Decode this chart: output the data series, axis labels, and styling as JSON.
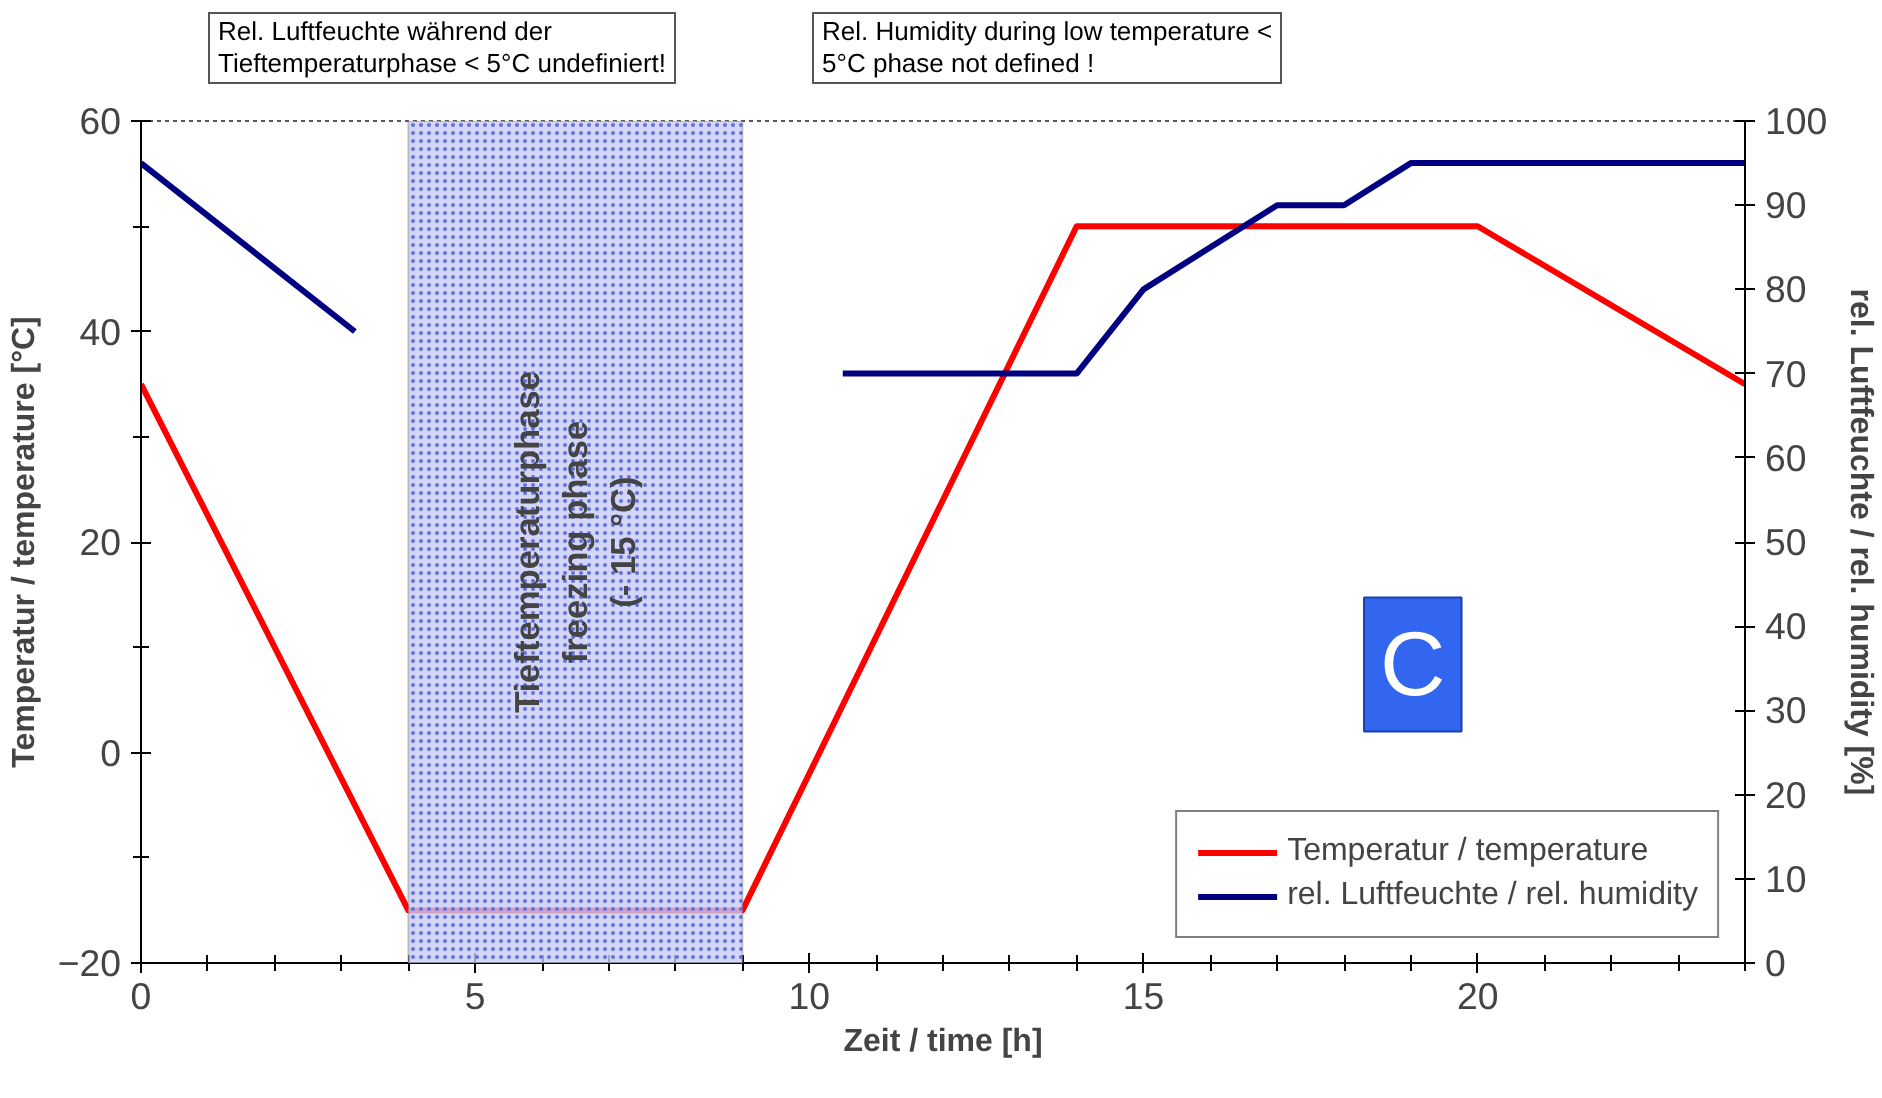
{
  "chart_data": {
    "type": "line",
    "xlabel": "Zeit / time [h]",
    "ylabel": "Temperatur / temperature [°C]",
    "y2label": "rel. Luftfeuchte / rel. humidity [%]",
    "xlim": [
      0,
      24
    ],
    "xticks": [
      0,
      5,
      10,
      15,
      20
    ],
    "ylim": [
      -20,
      60
    ],
    "yticks": [
      -20,
      0,
      20,
      40,
      60
    ],
    "y2lim": [
      0,
      100
    ],
    "y2ticks": [
      0,
      10,
      20,
      30,
      40,
      50,
      60,
      70,
      80,
      90,
      100
    ],
    "series": [
      {
        "name": "Temperatur / temperature",
        "color": "#ff0000",
        "x": [
          0,
          4,
          9,
          14,
          20,
          24
        ],
        "values": [
          35,
          -15,
          -15,
          50,
          50,
          35
        ]
      },
      {
        "name": "rel. Luftfeuchte / rel. humidity",
        "color": "#000080",
        "axis": "y2",
        "x": [
          0,
          3.2,
          7,
          10.5,
          14,
          15,
          17,
          18,
          19,
          24
        ],
        "values": [
          95,
          75,
          null,
          70,
          70,
          80,
          90,
          90,
          95,
          95
        ]
      }
    ],
    "bands": [
      {
        "axis": "x",
        "from": 4,
        "to": 9,
        "label": "Tieftemperaturphase\nfreezing phase\n(- 15 °C)",
        "color": "#c8ccf8"
      }
    ],
    "annotations": [
      "Rel. Luftfeuchte während der\nTieftemperaturphase < 5°C undefiniert!",
      "Rel. Humidity during low temperature <\n5°C phase not defined !",
      "C"
    ],
    "legend": "bottom right",
    "grid": false,
    "marker": "none",
    "line_style": "solid"
  }
}
